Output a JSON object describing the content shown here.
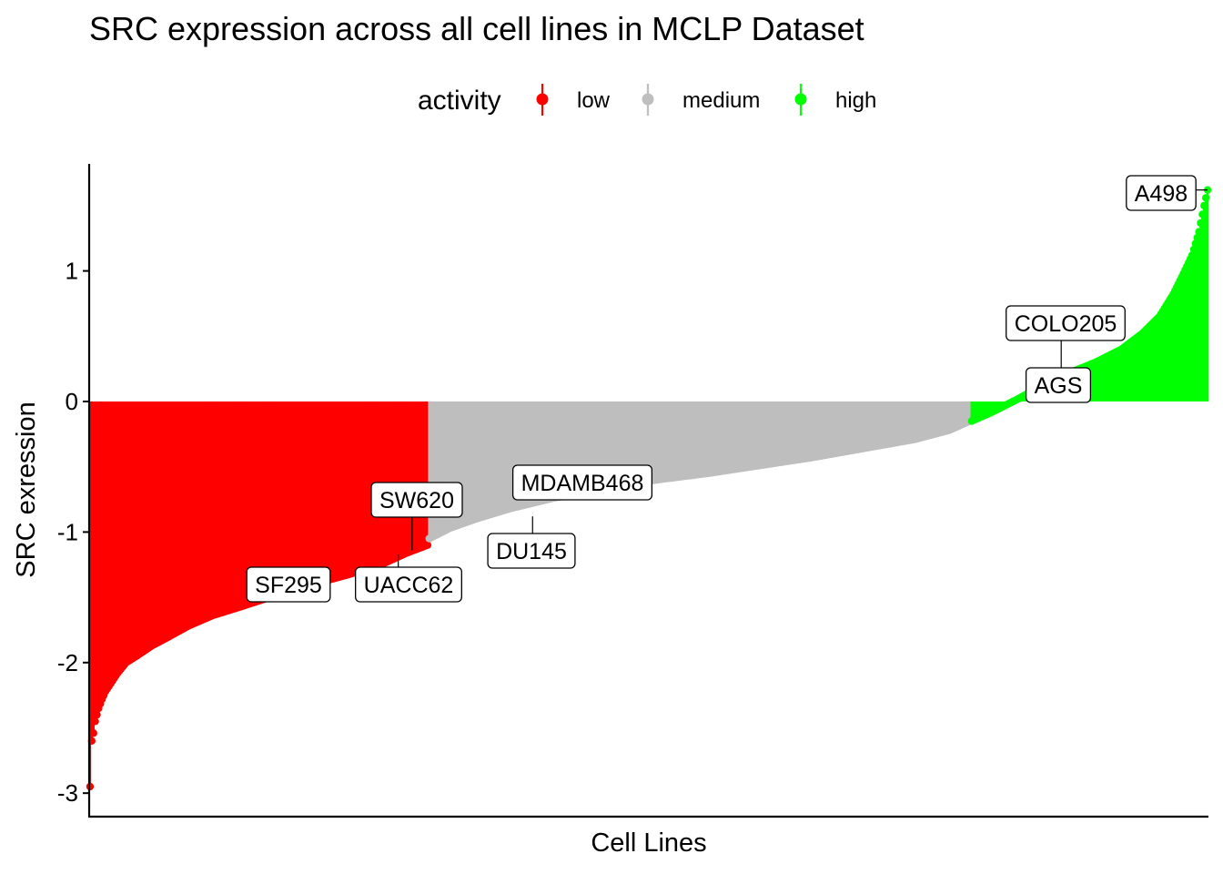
{
  "chart_data": {
    "type": "bar",
    "title": "SRC expression across all cell lines in MCLP Dataset",
    "xlabel": "Cell Lines",
    "ylabel": "SRC exression",
    "ylim": [
      -3.18,
      1.82
    ],
    "yticks": [
      1,
      0,
      -1,
      -2,
      -3
    ],
    "grid": false,
    "legend": {
      "title": "activity",
      "placement": "top",
      "entries": [
        {
          "label": "low",
          "color": "#ff0000"
        },
        {
          "label": "medium",
          "color": "#bebebe"
        },
        {
          "label": "high",
          "color": "#00ff00"
        }
      ]
    },
    "n_cell_lines": 650,
    "series": [
      {
        "name": "low",
        "color": "#ff0000",
        "x_range": [
          1,
          197
        ],
        "curve_x": [
          1,
          2,
          3,
          4,
          6,
          8,
          10,
          13,
          17,
          22,
          28,
          37,
          47,
          58,
          72,
          89,
          110,
          130,
          150,
          170,
          185,
          197
        ],
        "curve_y": [
          -2.95,
          -2.6,
          -2.54,
          -2.45,
          -2.35,
          -2.28,
          -2.22,
          -2.16,
          -2.08,
          -2.0,
          -1.95,
          -1.87,
          -1.8,
          -1.72,
          -1.64,
          -1.57,
          -1.48,
          -1.4,
          -1.33,
          -1.25,
          -1.16,
          -1.1
        ]
      },
      {
        "name": "medium",
        "color": "#bebebe",
        "x_range": [
          198,
          512
        ],
        "curve_x": [
          198,
          210,
          225,
          245,
          270,
          300,
          330,
          360,
          390,
          420,
          450,
          480,
          500,
          512
        ],
        "curve_y": [
          -1.05,
          -0.97,
          -0.9,
          -0.82,
          -0.74,
          -0.67,
          -0.6,
          -0.55,
          -0.49,
          -0.43,
          -0.36,
          -0.29,
          -0.22,
          -0.15
        ]
      },
      {
        "name": "high",
        "color": "#00ff00",
        "x_range": [
          513,
          650
        ],
        "curve_x": [
          513,
          525,
          540,
          555,
          570,
          585,
          600,
          612,
          622,
          630,
          636,
          641,
          645,
          648,
          650
        ],
        "curve_y": [
          -0.15,
          -0.08,
          0.02,
          0.13,
          0.22,
          0.3,
          0.4,
          0.52,
          0.65,
          0.82,
          0.98,
          1.12,
          1.3,
          1.5,
          1.62
        ]
      }
    ],
    "annotations": [
      {
        "label": "A498",
        "x": 650,
        "y": 1.62
      },
      {
        "label": "COLO205",
        "x": 565,
        "y": 0.2
      },
      {
        "label": "AGS",
        "x": 548,
        "y": 0.12
      },
      {
        "label": "MDAMB468",
        "x": 275,
        "y": -0.72
      },
      {
        "label": "DU145",
        "x": 258,
        "y": -0.88
      },
      {
        "label": "SW620",
        "x": 188,
        "y": -1.14
      },
      {
        "label": "UACC62",
        "x": 180,
        "y": -1.17
      },
      {
        "label": "SF295",
        "x": 130,
        "y": -1.4
      }
    ]
  }
}
